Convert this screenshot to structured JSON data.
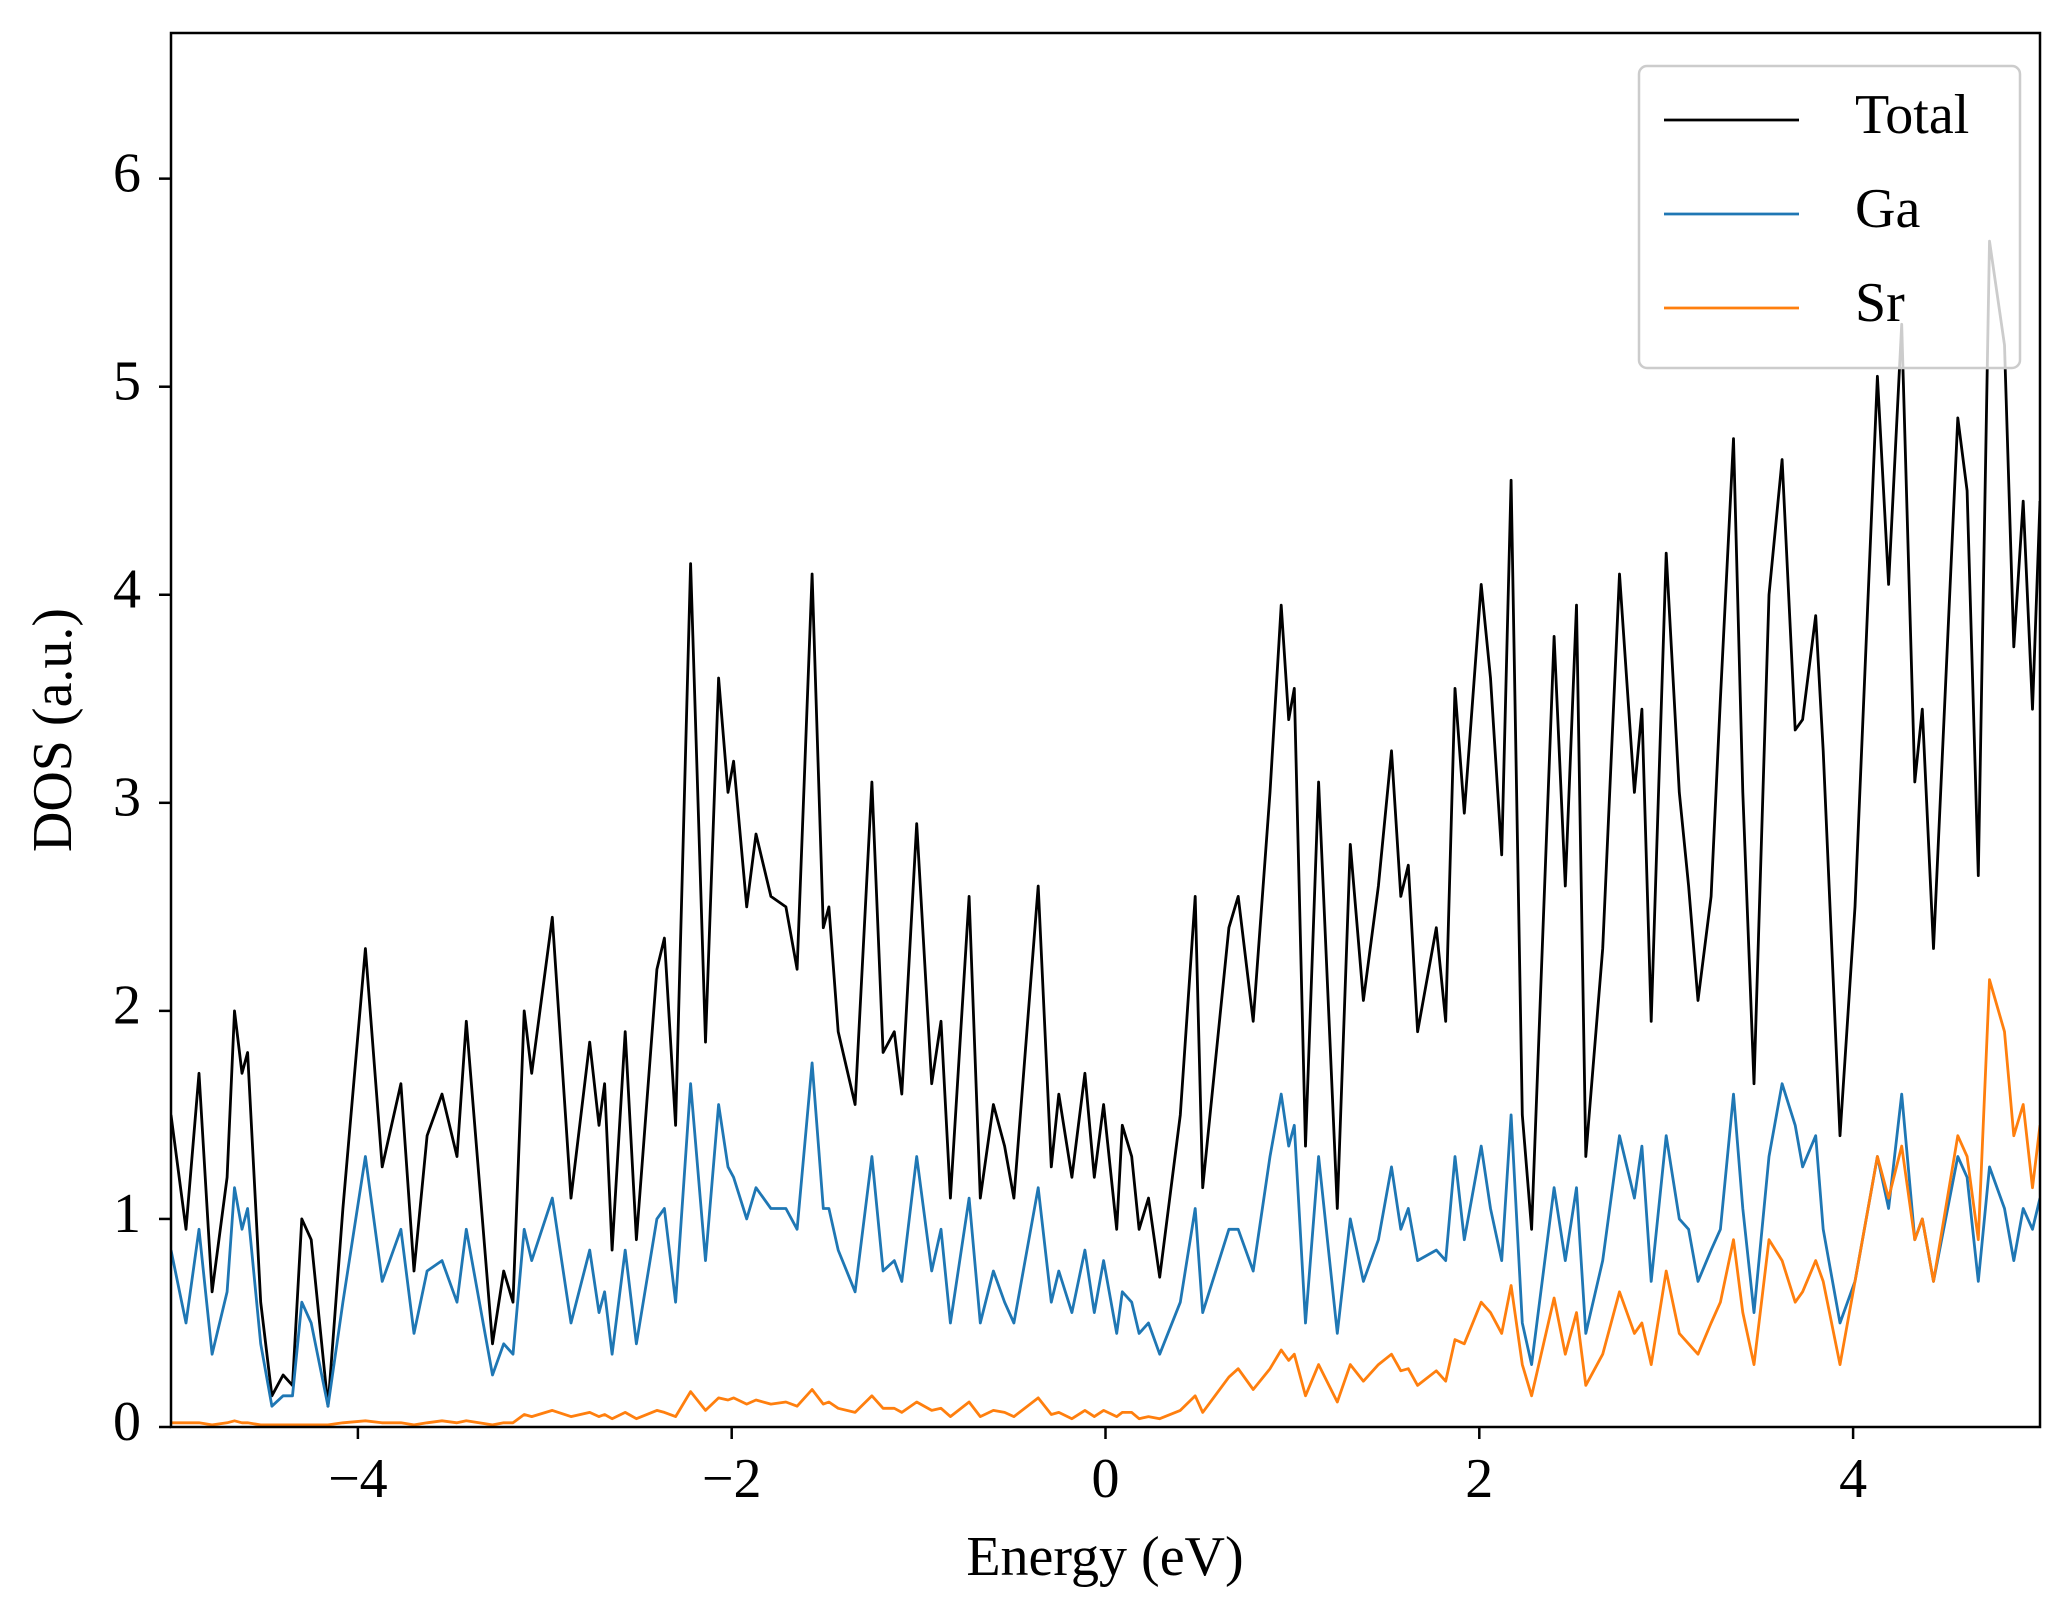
{
  "chart_data": {
    "type": "line",
    "xlabel": "Energy (eV)",
    "ylabel": "DOS (a.u.)",
    "x": [
      -5.0,
      -4.92,
      -4.85,
      -4.78,
      -4.7,
      -4.66,
      -4.62,
      -4.59,
      -4.52,
      -4.46,
      -4.4,
      -4.35,
      -4.3,
      -4.25,
      -4.16,
      -4.08,
      -3.96,
      -3.87,
      -3.77,
      -3.7,
      -3.63,
      -3.55,
      -3.47,
      -3.42,
      -3.28,
      -3.22,
      -3.17,
      -3.11,
      -3.07,
      -2.96,
      -2.86,
      -2.76,
      -2.71,
      -2.68,
      -2.64,
      -2.57,
      -2.51,
      -2.4,
      -2.36,
      -2.3,
      -2.22,
      -2.14,
      -2.07,
      -2.02,
      -1.99,
      -1.92,
      -1.87,
      -1.79,
      -1.71,
      -1.65,
      -1.57,
      -1.51,
      -1.48,
      -1.43,
      -1.34,
      -1.25,
      -1.19,
      -1.13,
      -1.09,
      -1.01,
      -0.93,
      -0.88,
      -0.83,
      -0.73,
      -0.67,
      -0.6,
      -0.54,
      -0.49,
      -0.36,
      -0.29,
      -0.25,
      -0.18,
      -0.11,
      -0.06,
      -0.01,
      0.06,
      0.09,
      0.14,
      0.18,
      0.23,
      0.29,
      0.4,
      0.48,
      0.52,
      0.66,
      0.71,
      0.79,
      0.88,
      0.94,
      0.98,
      1.01,
      1.07,
      1.14,
      1.24,
      1.31,
      1.38,
      1.46,
      1.53,
      1.58,
      1.62,
      1.67,
      1.77,
      1.82,
      1.87,
      1.92,
      2.01,
      2.06,
      2.12,
      2.17,
      2.23,
      2.28,
      2.4,
      2.46,
      2.52,
      2.57,
      2.66,
      2.75,
      2.83,
      2.87,
      2.92,
      3.0,
      3.07,
      3.12,
      3.17,
      3.24,
      3.29,
      3.36,
      3.41,
      3.47,
      3.55,
      3.62,
      3.69,
      3.73,
      3.8,
      3.84,
      3.93,
      4.01,
      4.13,
      4.19,
      4.26,
      4.33,
      4.37,
      4.43,
      4.56,
      4.61,
      4.67,
      4.73,
      4.81,
      4.86,
      4.91,
      4.96,
      5.0
    ],
    "series": [
      {
        "name": "Total",
        "color": "#000000",
        "values": [
          1.5,
          0.95,
          1.7,
          0.65,
          1.2,
          2.0,
          1.7,
          1.8,
          0.6,
          0.15,
          0.25,
          0.2,
          1.0,
          0.9,
          0.1,
          1.05,
          2.3,
          1.25,
          1.65,
          0.75,
          1.4,
          1.6,
          1.3,
          1.95,
          0.4,
          0.75,
          0.6,
          2.0,
          1.7,
          2.45,
          1.1,
          1.85,
          1.45,
          1.65,
          0.85,
          1.9,
          0.9,
          2.2,
          2.35,
          1.45,
          4.15,
          1.85,
          3.6,
          3.05,
          3.2,
          2.5,
          2.85,
          2.55,
          2.5,
          2.2,
          4.1,
          2.4,
          2.5,
          1.9,
          1.55,
          3.1,
          1.8,
          1.9,
          1.6,
          2.9,
          1.65,
          1.95,
          1.1,
          2.55,
          1.1,
          1.55,
          1.35,
          1.1,
          2.6,
          1.25,
          1.6,
          1.2,
          1.7,
          1.2,
          1.55,
          0.95,
          1.45,
          1.3,
          0.95,
          1.1,
          0.72,
          1.5,
          2.55,
          1.15,
          2.4,
          2.55,
          1.95,
          3.05,
          3.95,
          3.4,
          3.55,
          1.35,
          3.1,
          1.05,
          2.8,
          2.05,
          2.6,
          3.25,
          2.55,
          2.7,
          1.9,
          2.4,
          1.95,
          3.55,
          2.95,
          4.05,
          3.6,
          2.75,
          4.55,
          1.5,
          0.95,
          3.8,
          2.6,
          3.95,
          1.3,
          2.3,
          4.1,
          3.05,
          3.45,
          1.95,
          4.2,
          3.05,
          2.6,
          2.05,
          2.55,
          3.5,
          4.75,
          3.05,
          1.65,
          4.0,
          4.65,
          3.35,
          3.4,
          3.9,
          3.25,
          1.4,
          2.5,
          5.05,
          4.05,
          5.3,
          3.1,
          3.45,
          2.3,
          4.85,
          4.5,
          2.65,
          5.7,
          5.2,
          3.75,
          4.45,
          3.45,
          4.45
        ]
      },
      {
        "name": "Ga",
        "color": "#1f77b4",
        "values": [
          0.85,
          0.5,
          0.95,
          0.35,
          0.65,
          1.15,
          0.95,
          1.05,
          0.4,
          0.1,
          0.15,
          0.15,
          0.6,
          0.5,
          0.1,
          0.6,
          1.3,
          0.7,
          0.95,
          0.45,
          0.75,
          0.8,
          0.6,
          0.95,
          0.25,
          0.4,
          0.35,
          0.95,
          0.8,
          1.1,
          0.5,
          0.85,
          0.55,
          0.65,
          0.35,
          0.85,
          0.4,
          1.0,
          1.05,
          0.6,
          1.65,
          0.8,
          1.55,
          1.25,
          1.2,
          1.0,
          1.15,
          1.05,
          1.05,
          0.95,
          1.75,
          1.05,
          1.05,
          0.85,
          0.65,
          1.3,
          0.75,
          0.8,
          0.7,
          1.3,
          0.75,
          0.95,
          0.5,
          1.1,
          0.5,
          0.75,
          0.6,
          0.5,
          1.15,
          0.6,
          0.75,
          0.55,
          0.85,
          0.55,
          0.8,
          0.45,
          0.65,
          0.6,
          0.45,
          0.5,
          0.35,
          0.6,
          1.05,
          0.55,
          0.95,
          0.95,
          0.75,
          1.3,
          1.6,
          1.35,
          1.45,
          0.5,
          1.3,
          0.45,
          1.0,
          0.7,
          0.9,
          1.25,
          0.95,
          1.05,
          0.8,
          0.85,
          0.8,
          1.3,
          0.9,
          1.35,
          1.05,
          0.8,
          1.5,
          0.5,
          0.3,
          1.15,
          0.8,
          1.15,
          0.45,
          0.8,
          1.4,
          1.1,
          1.35,
          0.7,
          1.4,
          1.0,
          0.95,
          0.7,
          0.85,
          0.95,
          1.6,
          1.05,
          0.55,
          1.3,
          1.65,
          1.45,
          1.25,
          1.4,
          0.95,
          0.5,
          0.7,
          1.3,
          1.05,
          1.6,
          0.9,
          1.0,
          0.7,
          1.3,
          1.2,
          0.7,
          1.25,
          1.05,
          0.8,
          1.05,
          0.95,
          1.1
        ]
      },
      {
        "name": "Sr",
        "color": "#ff7f0e",
        "values": [
          0.02,
          0.02,
          0.02,
          0.01,
          0.02,
          0.03,
          0.02,
          0.02,
          0.01,
          0.01,
          0.01,
          0.01,
          0.01,
          0.01,
          0.01,
          0.02,
          0.03,
          0.02,
          0.02,
          0.01,
          0.02,
          0.03,
          0.02,
          0.03,
          0.01,
          0.02,
          0.02,
          0.06,
          0.05,
          0.08,
          0.05,
          0.07,
          0.05,
          0.06,
          0.04,
          0.07,
          0.04,
          0.08,
          0.07,
          0.05,
          0.17,
          0.08,
          0.14,
          0.13,
          0.14,
          0.11,
          0.13,
          0.11,
          0.12,
          0.1,
          0.18,
          0.11,
          0.12,
          0.09,
          0.07,
          0.15,
          0.09,
          0.09,
          0.07,
          0.12,
          0.08,
          0.09,
          0.05,
          0.12,
          0.05,
          0.08,
          0.07,
          0.05,
          0.14,
          0.06,
          0.07,
          0.04,
          0.08,
          0.05,
          0.08,
          0.05,
          0.07,
          0.07,
          0.04,
          0.05,
          0.04,
          0.08,
          0.15,
          0.07,
          0.24,
          0.28,
          0.18,
          0.28,
          0.37,
          0.32,
          0.35,
          0.15,
          0.3,
          0.12,
          0.3,
          0.22,
          0.3,
          0.35,
          0.27,
          0.28,
          0.2,
          0.27,
          0.22,
          0.42,
          0.4,
          0.6,
          0.55,
          0.45,
          0.68,
          0.3,
          0.15,
          0.62,
          0.35,
          0.55,
          0.2,
          0.35,
          0.65,
          0.45,
          0.5,
          0.3,
          0.75,
          0.45,
          0.4,
          0.35,
          0.5,
          0.6,
          0.9,
          0.55,
          0.3,
          0.9,
          0.8,
          0.6,
          0.65,
          0.8,
          0.7,
          0.3,
          0.7,
          1.3,
          1.1,
          1.35,
          0.9,
          1.0,
          0.7,
          1.4,
          1.3,
          0.9,
          2.15,
          1.9,
          1.4,
          1.55,
          1.15,
          1.45
        ]
      }
    ],
    "xlim": [
      -5,
      5
    ],
    "xticks": [
      {
        "value": -4,
        "label": "−4"
      },
      {
        "value": -2,
        "label": "−2"
      },
      0,
      2,
      4
    ],
    "ylim": [
      0,
      6.7
    ],
    "yticks": [
      0,
      1,
      2,
      3,
      4,
      5,
      6
    ],
    "legend": "upper right",
    "grid": false
  }
}
